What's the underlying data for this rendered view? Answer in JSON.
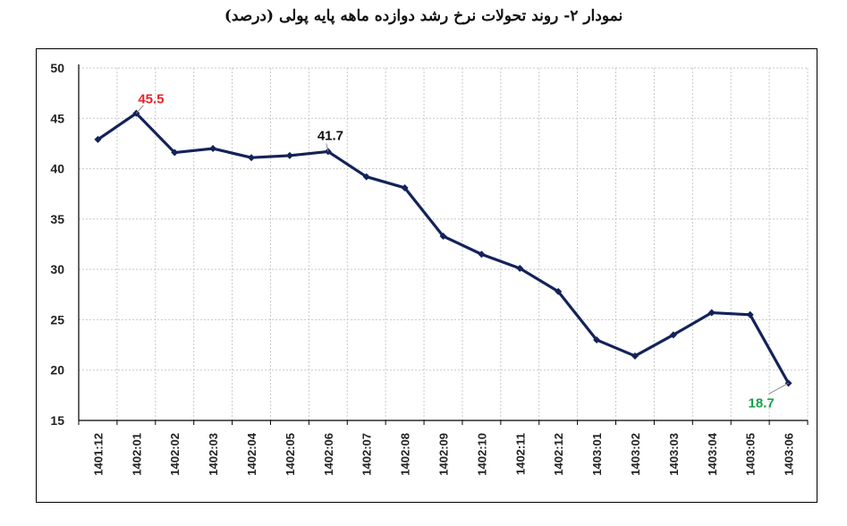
{
  "title": "نمودار ۲- روند تحولات نرخ رشد دوازده ماهه پایه پولی (درصد)",
  "chart_data": {
    "type": "line",
    "title": "نمودار ۲- روند تحولات نرخ رشد دوازده ماهه پایه پولی (درصد)",
    "xlabel": "",
    "ylabel": "",
    "categories": [
      "1401:12",
      "1402:01",
      "1402:02",
      "1402:03",
      "1402:04",
      "1402:05",
      "1402:06",
      "1402:07",
      "1402:08",
      "1402:09",
      "1402:10",
      "1402:11",
      "1402:12",
      "1403:01",
      "1403:02",
      "1403:03",
      "1403:04",
      "1403:05",
      "1403:06"
    ],
    "series": [
      {
        "values": [
          42.9,
          45.5,
          41.6,
          42.0,
          41.1,
          41.3,
          41.7,
          39.2,
          38.1,
          33.3,
          31.5,
          30.1,
          27.8,
          23.0,
          21.4,
          23.5,
          25.7,
          25.5,
          18.7
        ]
      }
    ],
    "ylim": [
      15,
      50
    ],
    "yticks": [
      15,
      20,
      25,
      30,
      35,
      40,
      45,
      50
    ],
    "grid": true,
    "colors": {
      "line": "#14225a",
      "marker": "#14225a",
      "label_max": "#e8232a",
      "label_mid": "#111111",
      "label_min": "#1aa04a",
      "grid": "#c8c8c8"
    },
    "annotations": [
      {
        "index": 1,
        "text": "45.5",
        "color": "#e8232a"
      },
      {
        "index": 6,
        "text": "41.7",
        "color": "#111111"
      },
      {
        "index": 18,
        "text": "18.7",
        "color": "#1aa04a"
      }
    ]
  }
}
